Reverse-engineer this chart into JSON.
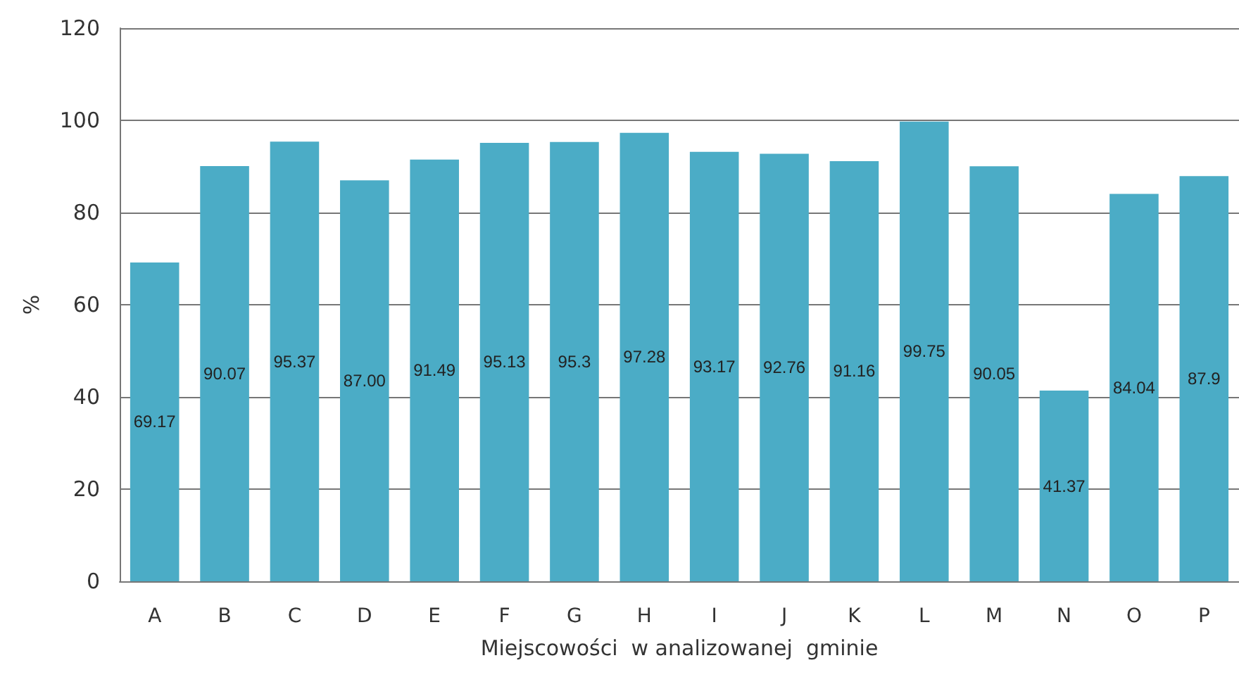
{
  "chart_data": {
    "type": "bar",
    "xlabel": "Miejscowości  w analizowanej  gminie",
    "ylabel": "%",
    "categories": [
      "A",
      "B",
      "C",
      "D",
      "E",
      "F",
      "G",
      "H",
      "I",
      "J",
      "K",
      "L",
      "M",
      "N",
      "O",
      "P"
    ],
    "values": [
      69.17,
      90.07,
      95.37,
      87.0,
      91.49,
      95.13,
      95.3,
      97.28,
      93.17,
      92.76,
      91.16,
      99.75,
      90.05,
      41.37,
      84.04,
      87.9
    ],
    "value_labels": [
      "69.17",
      "90.07",
      "95.37",
      "87.00",
      "91.49",
      "95.13",
      "95.3",
      "97.28",
      "93.17",
      "92.76",
      "91.16",
      "99.75",
      "90.05",
      "41.37",
      "84.04",
      "87.9"
    ],
    "color": "#4bacc6",
    "ylim": [
      0,
      120
    ],
    "yticks": [
      0,
      20,
      40,
      60,
      80,
      100,
      120
    ],
    "grid": "y"
  }
}
